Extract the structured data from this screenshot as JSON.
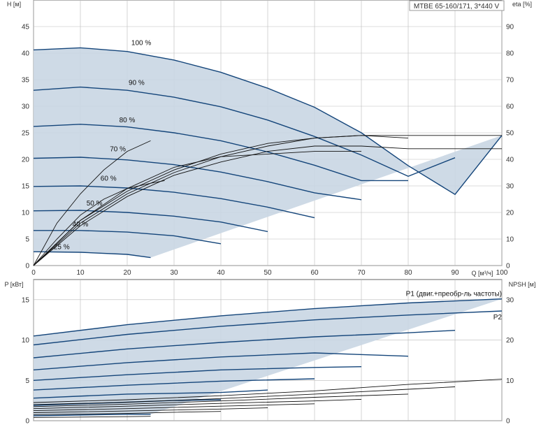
{
  "chart_data": [
    {
      "type": "line",
      "title": "MTBE 65-160/171, 3*440 V",
      "xlabel": "Q [м³/ч]",
      "ylabel": "H [м]",
      "y2label": "eta [%]",
      "xlim": [
        0,
        100
      ],
      "ylim": [
        0,
        50
      ],
      "y2lim": [
        0,
        100
      ],
      "xticks": [
        0,
        10,
        20,
        30,
        40,
        50,
        60,
        70,
        80,
        90,
        100
      ],
      "yticks": [
        0,
        5,
        10,
        15,
        20,
        25,
        30,
        35,
        40,
        45
      ],
      "y2ticks": [
        0,
        10,
        20,
        30,
        40,
        50,
        60,
        70,
        80,
        90
      ],
      "grid": true,
      "colors": {
        "curve": "#14457a",
        "area": "#c9d6e3",
        "efficiency": "#111111",
        "grid": "#bbbbbb"
      },
      "series": [
        {
          "name": "100 %",
          "points": [
            [
              0,
              40.6
            ],
            [
              10,
              41.0
            ],
            [
              20,
              40.3
            ],
            [
              30,
              38.7
            ],
            [
              40,
              36.4
            ],
            [
              50,
              33.4
            ],
            [
              60,
              29.8
            ],
            [
              70,
              25.0
            ],
            [
              80,
              18.8
            ],
            [
              90,
              13.4
            ],
            [
              100,
              24.5
            ]
          ]
        },
        {
          "name": "90 %",
          "points": [
            [
              0,
              33.0
            ],
            [
              10,
              33.6
            ],
            [
              20,
              33.0
            ],
            [
              30,
              31.7
            ],
            [
              40,
              29.9
            ],
            [
              50,
              27.4
            ],
            [
              60,
              24.3
            ],
            [
              70,
              20.8
            ],
            [
              80,
              16.8
            ],
            [
              90,
              20.3
            ]
          ]
        },
        {
          "name": "80 %",
          "points": [
            [
              0,
              26.2
            ],
            [
              10,
              26.6
            ],
            [
              20,
              26.1
            ],
            [
              30,
              25.0
            ],
            [
              40,
              23.5
            ],
            [
              50,
              21.4
            ],
            [
              60,
              18.9
            ],
            [
              70,
              16.0
            ],
            [
              80,
              16.0
            ]
          ]
        },
        {
          "name": "70 %",
          "points": [
            [
              0,
              20.2
            ],
            [
              10,
              20.4
            ],
            [
              20,
              19.9
            ],
            [
              30,
              19.0
            ],
            [
              40,
              17.6
            ],
            [
              50,
              15.8
            ],
            [
              60,
              13.7
            ],
            [
              70,
              12.4
            ]
          ]
        },
        {
          "name": "60 %",
          "points": [
            [
              0,
              14.9
            ],
            [
              10,
              15.0
            ],
            [
              20,
              14.6
            ],
            [
              30,
              13.8
            ],
            [
              40,
              12.6
            ],
            [
              50,
              11.0
            ],
            [
              60,
              9.0
            ]
          ]
        },
        {
          "name": "50 %",
          "points": [
            [
              0,
              10.3
            ],
            [
              10,
              10.4
            ],
            [
              20,
              10.0
            ],
            [
              30,
              9.3
            ],
            [
              40,
              8.2
            ],
            [
              50,
              6.4
            ]
          ]
        },
        {
          "name": "40 %",
          "points": [
            [
              0,
              6.6
            ],
            [
              10,
              6.6
            ],
            [
              20,
              6.3
            ],
            [
              30,
              5.6
            ],
            [
              40,
              4.1
            ]
          ]
        },
        {
          "name": "25 %",
          "points": [
            [
              0,
              2.6
            ],
            [
              10,
              2.5
            ],
            [
              20,
              2.1
            ],
            [
              25,
              1.5
            ]
          ]
        }
      ],
      "efficiency_series": [
        {
          "points": [
            [
              0,
              0
            ],
            [
              5,
              16
            ],
            [
              10,
              27
            ],
            [
              15,
              36
            ],
            [
              20,
              43
            ],
            [
              25,
              47
            ]
          ]
        },
        {
          "points": [
            [
              0,
              0
            ],
            [
              5,
              10
            ],
            [
              10,
              19
            ],
            [
              15,
              25
            ],
            [
              20,
              29
            ],
            [
              25,
              31
            ],
            [
              28,
              32
            ]
          ]
        },
        {
          "points": [
            [
              0,
              0
            ],
            [
              10,
              16
            ],
            [
              20,
              27
            ],
            [
              30,
              35
            ],
            [
              40,
              41
            ],
            [
              50,
              45
            ],
            [
              60,
              48
            ],
            [
              70,
              49
            ],
            [
              80,
              49
            ],
            [
              90,
              49
            ],
            [
              100,
              49
            ]
          ]
        },
        {
          "points": [
            [
              0,
              0
            ],
            [
              10,
              17
            ],
            [
              20,
              28
            ],
            [
              30,
              36
            ],
            [
              40,
              42
            ],
            [
              50,
              46
            ],
            [
              60,
              48
            ],
            [
              70,
              49
            ],
            [
              80,
              48
            ]
          ]
        },
        {
          "points": [
            [
              0,
              0
            ],
            [
              10,
              15
            ],
            [
              20,
              26
            ],
            [
              30,
              34
            ],
            [
              40,
              39
            ],
            [
              50,
              43
            ],
            [
              60,
              45
            ],
            [
              70,
              45
            ],
            [
              80,
              44
            ],
            [
              90,
              44
            ],
            [
              100,
              44
            ]
          ]
        },
        {
          "points": [
            [
              0,
              0
            ],
            [
              10,
              17
            ],
            [
              20,
              29
            ],
            [
              30,
              37
            ],
            [
              40,
              41
            ],
            [
              50,
              42
            ],
            [
              60,
              43
            ],
            [
              70,
              43
            ]
          ]
        }
      ],
      "labels": [
        {
          "text": "100 %",
          "x": 23,
          "y": 41.5
        },
        {
          "text": "90 %",
          "x": 22,
          "y": 34
        },
        {
          "text": "80 %",
          "x": 20,
          "y": 27
        },
        {
          "text": "70 %",
          "x": 18,
          "y": 21.5
        },
        {
          "text": "60 %",
          "x": 16,
          "y": 16
        },
        {
          "text": "50 %",
          "x": 13,
          "y": 11.3
        },
        {
          "text": "40 %",
          "x": 10,
          "y": 7.4
        },
        {
          "text": "25 %",
          "x": 6,
          "y": 3.1
        }
      ]
    },
    {
      "type": "line",
      "ylabel": "P [кВт]",
      "y2label": "NPSH [м]",
      "xlim": [
        0,
        100
      ],
      "ylim": [
        0,
        17.5
      ],
      "y2lim": [
        0,
        35
      ],
      "xticks": [
        0,
        10,
        20,
        30,
        40,
        50,
        60,
        70,
        80,
        90,
        100
      ],
      "yticks": [
        0,
        5,
        10,
        15
      ],
      "y2ticks": [
        0,
        10,
        20,
        30
      ],
      "grid": true,
      "series": [
        {
          "name": "P1 (двиг.+преобр-ль частоты)",
          "points": [
            [
              0,
              10.5
            ],
            [
              20,
              11.9
            ],
            [
              40,
              13.0
            ],
            [
              60,
              13.9
            ],
            [
              80,
              14.6
            ],
            [
              100,
              15.1
            ]
          ]
        },
        {
          "name": "P2",
          "points": [
            [
              0,
              9.4
            ],
            [
              20,
              10.7
            ],
            [
              40,
              11.7
            ],
            [
              60,
              12.5
            ],
            [
              80,
              13.1
            ],
            [
              100,
              13.6
            ]
          ]
        },
        {
          "points": [
            [
              0,
              7.8
            ],
            [
              20,
              8.9
            ],
            [
              40,
              9.7
            ],
            [
              60,
              10.4
            ],
            [
              80,
              10.9
            ],
            [
              90,
              11.2
            ]
          ]
        },
        {
          "points": [
            [
              0,
              6.3
            ],
            [
              20,
              7.2
            ],
            [
              40,
              7.9
            ],
            [
              60,
              8.4
            ],
            [
              80,
              8.0
            ]
          ]
        },
        {
          "points": [
            [
              0,
              5.0
            ],
            [
              20,
              5.7
            ],
            [
              40,
              6.3
            ],
            [
              60,
              6.6
            ],
            [
              70,
              6.7
            ]
          ]
        },
        {
          "points": [
            [
              0,
              3.8
            ],
            [
              20,
              4.4
            ],
            [
              40,
              4.9
            ],
            [
              60,
              5.2
            ]
          ]
        },
        {
          "points": [
            [
              0,
              2.8
            ],
            [
              20,
              3.3
            ],
            [
              40,
              3.5
            ],
            [
              50,
              3.8
            ]
          ]
        },
        {
          "points": [
            [
              0,
              1.9
            ],
            [
              20,
              2.3
            ],
            [
              30,
              2.5
            ],
            [
              40,
              2.6
            ]
          ]
        },
        {
          "points": [
            [
              0,
              0.6
            ],
            [
              10,
              0.7
            ],
            [
              20,
              0.8
            ],
            [
              25,
              0.8
            ]
          ]
        }
      ],
      "npsh_series": [
        {
          "points": [
            [
              0,
              4.5
            ],
            [
              20,
              5.2
            ],
            [
              40,
              6.2
            ],
            [
              60,
              7.4
            ],
            [
              80,
              9.0
            ],
            [
              100,
              10.3
            ]
          ]
        },
        {
          "points": [
            [
              0,
              4.0
            ],
            [
              20,
              4.6
            ],
            [
              40,
              5.5
            ],
            [
              60,
              6.6
            ],
            [
              80,
              7.8
            ],
            [
              90,
              8.4
            ]
          ]
        },
        {
          "points": [
            [
              0,
              3.5
            ],
            [
              20,
              4.1
            ],
            [
              40,
              4.9
            ],
            [
              60,
              5.8
            ],
            [
              80,
              6.6
            ]
          ]
        },
        {
          "points": [
            [
              0,
              3.0
            ],
            [
              20,
              3.6
            ],
            [
              40,
              4.3
            ],
            [
              60,
              4.9
            ],
            [
              70,
              5.3
            ]
          ]
        },
        {
          "points": [
            [
              0,
              2.5
            ],
            [
              20,
              3.0
            ],
            [
              40,
              3.6
            ],
            [
              60,
              4.2
            ]
          ]
        },
        {
          "points": [
            [
              0,
              2.0
            ],
            [
              20,
              2.4
            ],
            [
              40,
              2.9
            ],
            [
              50,
              3.2
            ]
          ]
        },
        {
          "points": [
            [
              0,
              1.5
            ],
            [
              20,
              1.8
            ],
            [
              30,
              2.1
            ],
            [
              40,
              2.3
            ]
          ]
        },
        {
          "points": [
            [
              0,
              0.8
            ],
            [
              10,
              0.9
            ],
            [
              20,
              1.0
            ],
            [
              25,
              1.1
            ]
          ]
        }
      ],
      "labels": [
        {
          "text": "P1 (двиг.+преобр-ль частоты)",
          "x": 100,
          "y": 15.1,
          "anchor": "end",
          "dy": -4
        },
        {
          "text": "P2",
          "x": 100,
          "y": 13.6,
          "anchor": "end",
          "dy": 12
        }
      ]
    }
  ]
}
